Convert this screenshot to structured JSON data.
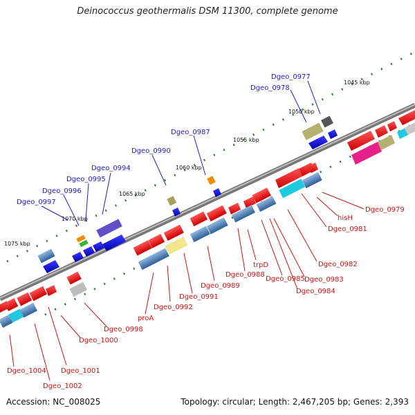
{
  "title": "Deinococcus geothermalis DSM 11300, complete genome",
  "footer": {
    "accession": "Accession: NC_008025",
    "topology": "Topology: circular; Length: 2,467,205 bp; Genes: 2,393"
  },
  "scale_labels": [
    "1045 kbp",
    "1050 kbp",
    "1055 kbp",
    "1060 kbp",
    "1065 kbp",
    "1070 kbp",
    "1075 kbp"
  ],
  "genes_top": [
    {
      "label": "Dgeo_0977",
      "color": "#1d1dc8"
    },
    {
      "label": "Dgeo_0978",
      "color": "#1d1dc8"
    },
    {
      "label": "Dgeo_0987",
      "color": "#1d1dc8"
    },
    {
      "label": "Dgeo_0990",
      "color": "#1d1dc8"
    },
    {
      "label": "Dgeo_0994",
      "color": "#1d1dc8"
    },
    {
      "label": "Dgeo_0995",
      "color": "#1d1dc8"
    },
    {
      "label": "Dgeo_0996",
      "color": "#1d1dc8"
    },
    {
      "label": "Dgeo_0997",
      "color": "#1d1dc8"
    }
  ],
  "genes_bottom": [
    {
      "label": "Dgeo_0979"
    },
    {
      "label": "hisH"
    },
    {
      "label": "Dgeo_0981"
    },
    {
      "label": "Dgeo_0982"
    },
    {
      "label": "Dgeo_0983"
    },
    {
      "label": "Dgeo_0984"
    },
    {
      "label": "Dgeo_0985"
    },
    {
      "label": "trpD"
    },
    {
      "label": "Dgeo_0988"
    },
    {
      "label": "Dgeo_0989"
    },
    {
      "label": "Dgeo_0991"
    },
    {
      "label": "Dgeo_0992"
    },
    {
      "label": "proA"
    },
    {
      "label": "Dgeo_0998"
    },
    {
      "label": "Dgeo_1000"
    },
    {
      "label": "Dgeo_1001"
    },
    {
      "label": "Dgeo_1002"
    },
    {
      "label": "Dgeo_1004"
    }
  ],
  "colors": {
    "plus_strand": "#1d1dc8",
    "minus_strand": "#c81414",
    "backbone": "#7a7a7a",
    "tick": "#2e7d32"
  }
}
